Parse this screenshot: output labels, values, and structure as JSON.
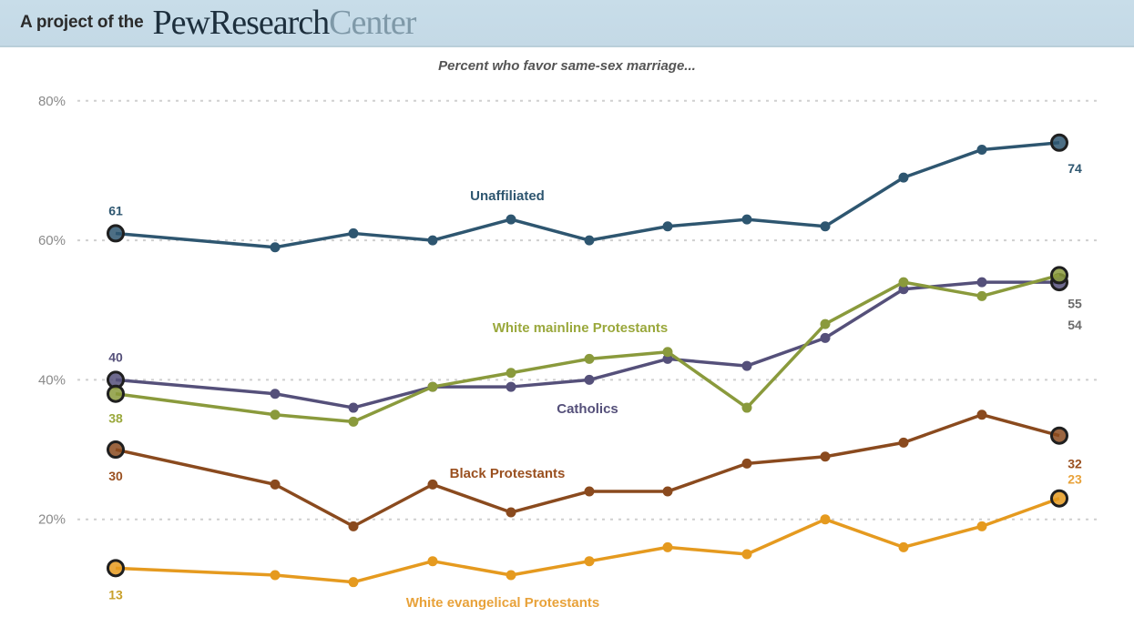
{
  "header": {
    "project_prefix": "A project of the",
    "brand_bold": "PewResearch",
    "brand_light": "Center"
  },
  "chart_data": {
    "type": "line",
    "title": "Percent who favor same-sex marriage...",
    "xlabel": "",
    "ylabel": "",
    "ylim": [
      0,
      80
    ],
    "yticks": [
      "20%",
      "40%",
      "60%",
      "80%"
    ],
    "grid": "horizontal dotted",
    "legend": "inline labels",
    "x": [
      1,
      2,
      3,
      4,
      5,
      6,
      7,
      8,
      9,
      10,
      11,
      12
    ],
    "series": [
      {
        "name": "Unaffiliated",
        "color": "#2e5670",
        "values": [
          61,
          59,
          61,
          60,
          63,
          60,
          62,
          63,
          62,
          69,
          73,
          74
        ],
        "start_label": "61",
        "end_label": "74"
      },
      {
        "name": "Catholics",
        "color": "#55507a",
        "values": [
          40,
          38,
          36,
          39,
          39,
          40,
          43,
          42,
          46,
          53,
          54,
          54
        ],
        "start_label": "40",
        "end_label": "54"
      },
      {
        "name": "White mainline Protestants",
        "color": "#8a9a3c",
        "values": [
          38,
          35,
          34,
          39,
          41,
          43,
          44,
          36,
          48,
          54,
          52,
          55
        ],
        "start_label": "38",
        "end_label": "55"
      },
      {
        "name": "Black Protestants",
        "color": "#8a4a1e",
        "values": [
          30,
          25,
          19,
          25,
          21,
          24,
          24,
          28,
          29,
          31,
          35,
          32
        ],
        "start_label": "30",
        "end_label": "32"
      },
      {
        "name": "White evangelical Protestants",
        "color": "#e59a1f",
        "values": [
          13,
          12,
          11,
          14,
          12,
          14,
          16,
          15,
          20,
          16,
          19,
          23
        ],
        "start_label": "13",
        "end_label": "23"
      }
    ]
  }
}
